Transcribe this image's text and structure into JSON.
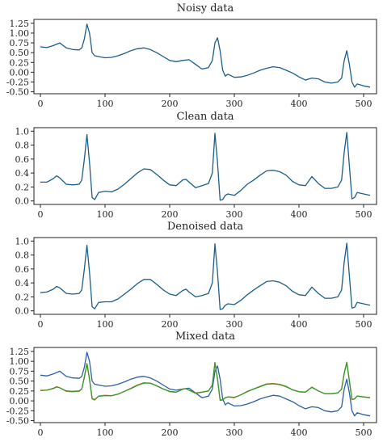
{
  "colors": {
    "clean": "#1b5e8a",
    "denoised": "#1b5e8a",
    "noisy": "#1b5e8a",
    "mixed_noisy": "#2a5fa6",
    "mixed_clean": "#e07a2c",
    "mixed_denoised": "#2c9a2c"
  },
  "chart_data": [
    {
      "type": "line",
      "title": "Noisy data",
      "xlim": [
        -10,
        520
      ],
      "ylim": [
        -0.55,
        1.35
      ],
      "xticks": [
        0,
        100,
        200,
        300,
        400,
        500
      ],
      "yticks": [
        -0.5,
        -0.25,
        0.0,
        0.25,
        0.5,
        0.75,
        1.0,
        1.25
      ],
      "ytick_labels": [
        "-0.50",
        "-0.25",
        "0.00",
        "0.25",
        "0.50",
        "0.75",
        "1.00",
        "1.25"
      ],
      "xtick_labels": [
        "0",
        "100",
        "200",
        "300",
        "400",
        "500"
      ],
      "series": [
        {
          "x": [
            0,
            10,
            20,
            30,
            40,
            50,
            60,
            64,
            68,
            72,
            76,
            80,
            84,
            90,
            100,
            110,
            120,
            130,
            140,
            150,
            160,
            170,
            180,
            190,
            200,
            210,
            220,
            230,
            240,
            250,
            260,
            266,
            270,
            274,
            278,
            282,
            286,
            290,
            300,
            310,
            320,
            330,
            340,
            350,
            360,
            370,
            380,
            390,
            400,
            410,
            420,
            430,
            440,
            450,
            460,
            466,
            470,
            474,
            478,
            482,
            486,
            490,
            500,
            510
          ],
          "y": [
            0.65,
            0.63,
            0.68,
            0.75,
            0.62,
            0.58,
            0.57,
            0.62,
            0.85,
            1.23,
            1.0,
            0.5,
            0.42,
            0.4,
            0.37,
            0.38,
            0.42,
            0.48,
            0.55,
            0.6,
            0.62,
            0.58,
            0.5,
            0.4,
            0.3,
            0.27,
            0.3,
            0.32,
            0.2,
            0.08,
            0.12,
            0.3,
            0.75,
            0.88,
            0.55,
            0.05,
            -0.1,
            -0.05,
            -0.13,
            -0.12,
            -0.08,
            -0.02,
            0.05,
            0.1,
            0.14,
            0.12,
            0.05,
            -0.02,
            -0.12,
            -0.2,
            -0.15,
            -0.17,
            -0.25,
            -0.28,
            -0.25,
            -0.15,
            0.3,
            0.55,
            0.2,
            -0.25,
            -0.38,
            -0.3,
            -0.35,
            -0.38
          ]
        }
      ]
    },
    {
      "type": "line",
      "title": "Clean data",
      "xlim": [
        -10,
        520
      ],
      "ylim": [
        -0.05,
        1.05
      ],
      "xticks": [
        0,
        100,
        200,
        300,
        400,
        500
      ],
      "yticks": [
        0.0,
        0.2,
        0.4,
        0.6,
        0.8,
        1.0
      ],
      "ytick_labels": [
        "0.0",
        "0.2",
        "0.4",
        "0.6",
        "0.8",
        "1.0"
      ],
      "xtick_labels": [
        "0",
        "100",
        "200",
        "300",
        "400",
        "500"
      ],
      "series": [
        {
          "x": [
            0,
            10,
            20,
            25,
            30,
            40,
            50,
            60,
            64,
            68,
            72,
            76,
            80,
            84,
            90,
            100,
            110,
            120,
            130,
            140,
            150,
            160,
            170,
            180,
            190,
            200,
            210,
            220,
            225,
            230,
            240,
            250,
            260,
            266,
            270,
            274,
            278,
            282,
            286,
            290,
            300,
            310,
            320,
            330,
            340,
            350,
            360,
            370,
            380,
            390,
            400,
            410,
            420,
            430,
            440,
            450,
            460,
            466,
            470,
            474,
            478,
            482,
            486,
            490,
            500,
            510
          ],
          "y": [
            0.27,
            0.27,
            0.32,
            0.36,
            0.33,
            0.24,
            0.23,
            0.24,
            0.3,
            0.6,
            0.95,
            0.55,
            0.05,
            0.02,
            0.12,
            0.14,
            0.13,
            0.17,
            0.24,
            0.32,
            0.4,
            0.46,
            0.45,
            0.38,
            0.3,
            0.23,
            0.22,
            0.3,
            0.31,
            0.27,
            0.19,
            0.22,
            0.25,
            0.4,
            0.97,
            0.55,
            0.01,
            0.02,
            0.08,
            0.1,
            0.08,
            0.15,
            0.24,
            0.3,
            0.37,
            0.43,
            0.44,
            0.42,
            0.37,
            0.28,
            0.23,
            0.22,
            0.35,
            0.25,
            0.18,
            0.18,
            0.2,
            0.3,
            0.7,
            0.98,
            0.5,
            0.03,
            0.05,
            0.12,
            0.1,
            0.08
          ]
        }
      ]
    },
    {
      "type": "line",
      "title": "Denoised data",
      "xlim": [
        -10,
        520
      ],
      "ylim": [
        -0.05,
        1.05
      ],
      "xticks": [
        0,
        100,
        200,
        300,
        400,
        500
      ],
      "yticks": [
        0.0,
        0.2,
        0.4,
        0.6,
        0.8,
        1.0
      ],
      "ytick_labels": [
        "0.0",
        "0.2",
        "0.4",
        "0.6",
        "0.8",
        "1.0"
      ],
      "xtick_labels": [
        "0",
        "100",
        "200",
        "300",
        "400",
        "500"
      ],
      "series": [
        {
          "x": [
            0,
            10,
            20,
            25,
            30,
            40,
            50,
            60,
            64,
            68,
            72,
            76,
            80,
            84,
            90,
            100,
            110,
            120,
            130,
            140,
            150,
            160,
            170,
            180,
            190,
            200,
            210,
            220,
            225,
            230,
            240,
            250,
            260,
            266,
            270,
            274,
            278,
            282,
            286,
            290,
            300,
            310,
            320,
            330,
            340,
            350,
            360,
            370,
            380,
            390,
            400,
            410,
            420,
            430,
            440,
            450,
            460,
            466,
            470,
            474,
            478,
            482,
            486,
            490,
            500,
            510
          ],
          "y": [
            0.26,
            0.27,
            0.31,
            0.35,
            0.33,
            0.25,
            0.24,
            0.25,
            0.3,
            0.6,
            0.94,
            0.55,
            0.06,
            0.03,
            0.12,
            0.13,
            0.13,
            0.17,
            0.24,
            0.31,
            0.39,
            0.45,
            0.45,
            0.38,
            0.3,
            0.24,
            0.22,
            0.29,
            0.31,
            0.27,
            0.2,
            0.22,
            0.25,
            0.4,
            0.96,
            0.55,
            0.02,
            0.03,
            0.08,
            0.1,
            0.09,
            0.15,
            0.23,
            0.3,
            0.36,
            0.42,
            0.43,
            0.41,
            0.36,
            0.28,
            0.23,
            0.22,
            0.34,
            0.25,
            0.18,
            0.18,
            0.2,
            0.3,
            0.7,
            0.97,
            0.5,
            0.04,
            0.05,
            0.12,
            0.1,
            0.08
          ]
        }
      ]
    },
    {
      "type": "line",
      "title": "Mixed data",
      "xlim": [
        -10,
        520
      ],
      "ylim": [
        -0.55,
        1.35
      ],
      "xticks": [
        0,
        100,
        200,
        300,
        400,
        500
      ],
      "yticks": [
        -0.5,
        -0.25,
        0.0,
        0.25,
        0.5,
        0.75,
        1.0,
        1.25
      ],
      "ytick_labels": [
        "-0.50",
        "-0.25",
        "0.00",
        "0.25",
        "0.50",
        "0.75",
        "1.00",
        "1.25"
      ],
      "xtick_labels": [
        "0",
        "100",
        "200",
        "300",
        "400",
        "500"
      ],
      "series": [
        {
          "color_key": "mixed_noisy",
          "x": [
            0,
            10,
            20,
            30,
            40,
            50,
            60,
            64,
            68,
            72,
            76,
            80,
            84,
            90,
            100,
            110,
            120,
            130,
            140,
            150,
            160,
            170,
            180,
            190,
            200,
            210,
            220,
            230,
            240,
            250,
            260,
            266,
            270,
            274,
            278,
            282,
            286,
            290,
            300,
            310,
            320,
            330,
            340,
            350,
            360,
            370,
            380,
            390,
            400,
            410,
            420,
            430,
            440,
            450,
            460,
            466,
            470,
            474,
            478,
            482,
            486,
            490,
            500,
            510
          ],
          "y": [
            0.65,
            0.63,
            0.68,
            0.75,
            0.62,
            0.58,
            0.57,
            0.62,
            0.85,
            1.23,
            1.0,
            0.5,
            0.42,
            0.4,
            0.37,
            0.38,
            0.42,
            0.48,
            0.55,
            0.6,
            0.62,
            0.58,
            0.5,
            0.4,
            0.3,
            0.27,
            0.3,
            0.32,
            0.2,
            0.08,
            0.12,
            0.3,
            0.75,
            0.88,
            0.55,
            0.05,
            -0.1,
            -0.05,
            -0.13,
            -0.12,
            -0.08,
            -0.02,
            0.05,
            0.1,
            0.14,
            0.12,
            0.05,
            -0.02,
            -0.12,
            -0.2,
            -0.15,
            -0.17,
            -0.25,
            -0.28,
            -0.25,
            -0.15,
            0.3,
            0.55,
            0.2,
            -0.25,
            -0.38,
            -0.3,
            -0.35,
            -0.38
          ]
        },
        {
          "color_key": "mixed_clean",
          "x": [
            0,
            10,
            20,
            25,
            30,
            40,
            50,
            60,
            64,
            68,
            72,
            76,
            80,
            84,
            90,
            100,
            110,
            120,
            130,
            140,
            150,
            160,
            170,
            180,
            190,
            200,
            210,
            220,
            225,
            230,
            240,
            250,
            260,
            266,
            270,
            274,
            278,
            282,
            286,
            290,
            300,
            310,
            320,
            330,
            340,
            350,
            360,
            370,
            380,
            390,
            400,
            410,
            420,
            430,
            440,
            450,
            460,
            466,
            470,
            474,
            478,
            482,
            486,
            490,
            500,
            510
          ],
          "y": [
            0.27,
            0.27,
            0.32,
            0.36,
            0.33,
            0.24,
            0.23,
            0.24,
            0.3,
            0.6,
            0.95,
            0.55,
            0.05,
            0.02,
            0.12,
            0.14,
            0.13,
            0.17,
            0.24,
            0.32,
            0.4,
            0.46,
            0.45,
            0.38,
            0.3,
            0.23,
            0.22,
            0.3,
            0.31,
            0.27,
            0.19,
            0.22,
            0.25,
            0.4,
            0.97,
            0.55,
            0.01,
            0.02,
            0.08,
            0.1,
            0.08,
            0.15,
            0.24,
            0.3,
            0.37,
            0.43,
            0.44,
            0.42,
            0.37,
            0.28,
            0.23,
            0.22,
            0.35,
            0.25,
            0.18,
            0.18,
            0.2,
            0.3,
            0.7,
            0.98,
            0.5,
            0.03,
            0.05,
            0.12,
            0.1,
            0.08
          ]
        },
        {
          "color_key": "mixed_denoised",
          "x": [
            0,
            10,
            20,
            25,
            30,
            40,
            50,
            60,
            64,
            68,
            72,
            76,
            80,
            84,
            90,
            100,
            110,
            120,
            130,
            140,
            150,
            160,
            170,
            180,
            190,
            200,
            210,
            220,
            225,
            230,
            240,
            250,
            260,
            266,
            270,
            274,
            278,
            282,
            286,
            290,
            300,
            310,
            320,
            330,
            340,
            350,
            360,
            370,
            380,
            390,
            400,
            410,
            420,
            430,
            440,
            450,
            460,
            466,
            470,
            474,
            478,
            482,
            486,
            490,
            500,
            510
          ],
          "y": [
            0.26,
            0.27,
            0.31,
            0.35,
            0.33,
            0.25,
            0.24,
            0.25,
            0.3,
            0.6,
            0.94,
            0.55,
            0.06,
            0.03,
            0.12,
            0.13,
            0.13,
            0.17,
            0.24,
            0.31,
            0.39,
            0.45,
            0.45,
            0.38,
            0.3,
            0.24,
            0.22,
            0.29,
            0.31,
            0.27,
            0.2,
            0.22,
            0.25,
            0.4,
            0.96,
            0.55,
            0.02,
            0.03,
            0.08,
            0.1,
            0.09,
            0.15,
            0.23,
            0.3,
            0.36,
            0.42,
            0.43,
            0.41,
            0.36,
            0.28,
            0.23,
            0.22,
            0.34,
            0.25,
            0.18,
            0.18,
            0.2,
            0.3,
            0.7,
            0.97,
            0.5,
            0.04,
            0.05,
            0.12,
            0.1,
            0.08
          ]
        }
      ]
    }
  ]
}
